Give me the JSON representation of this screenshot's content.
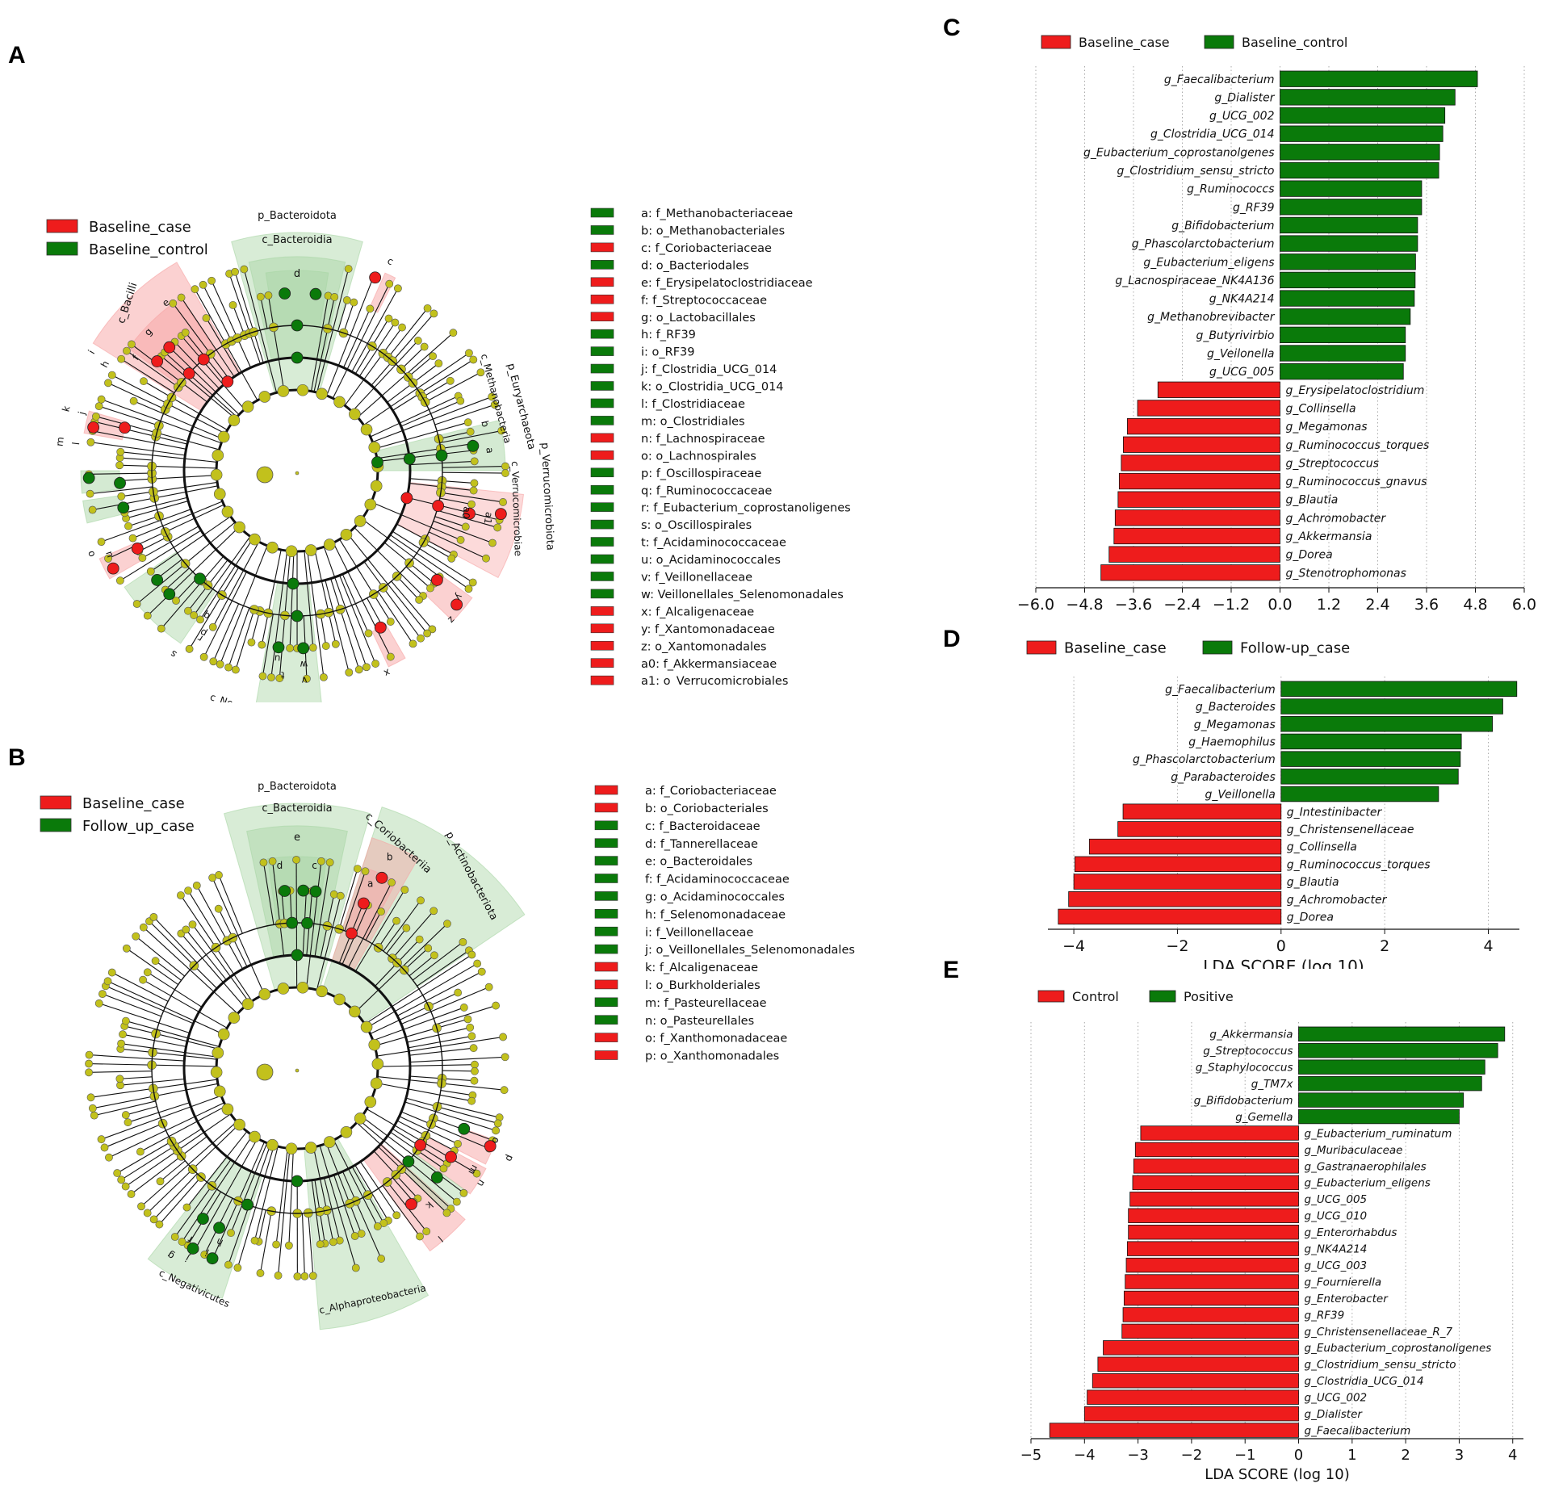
{
  "colors": {
    "red": "#ee1c1c",
    "green": "#0a7a0a",
    "node": "#c2c11c",
    "red_sector": "#f7a3a3",
    "green_sector": "#a9d5a5"
  },
  "panels": {
    "A": "A",
    "B": "B",
    "C": "C",
    "D": "D",
    "E": "E"
  },
  "clade_A": {
    "legend": [
      "Baseline_case",
      "Baseline_control"
    ],
    "labels": [
      "p_Bacteroidota",
      "c_Bacteroidia",
      "d",
      "c_Bacilli",
      "p_Euryarchaeota",
      "c_Methanobacteria",
      "p_Verrucomicrobiota",
      "c_Verrucomicrobiae",
      "c_Negativicutes",
      "c",
      "e",
      "g",
      "f",
      "i",
      "h",
      "k",
      "j",
      "m",
      "l",
      "o",
      "n",
      "b",
      "a",
      "a1",
      "a0",
      "q",
      "p",
      "s",
      "r",
      "t",
      "u",
      "w",
      "v",
      "y",
      "z",
      "x"
    ],
    "keys": [
      {
        "text": "a: f_Methanobacteriaceae",
        "c": "g"
      },
      {
        "text": "b: o_Methanobacteriales",
        "c": "g"
      },
      {
        "text": "c: f_Coriobacteriaceae",
        "c": "r"
      },
      {
        "text": "d: o_Bacteriodales",
        "c": "g"
      },
      {
        "text": "e: f_Erysipelatoclostridiaceae",
        "c": "r"
      },
      {
        "text": "f: f_Streptococcaceae",
        "c": "r"
      },
      {
        "text": "g: o_Lactobacillales",
        "c": "r"
      },
      {
        "text": "h: f_RF39",
        "c": "g"
      },
      {
        "text": "i: o_RF39",
        "c": "g"
      },
      {
        "text": "j: f_Clostridia_UCG_014",
        "c": "g"
      },
      {
        "text": "k: o_Clostridia_UCG_014",
        "c": "g"
      },
      {
        "text": "l: f_Clostridiaceae",
        "c": "g"
      },
      {
        "text": "m: o_Clostridiales",
        "c": "g"
      },
      {
        "text": "n: f_Lachnospiraceae",
        "c": "r"
      },
      {
        "text": "o: o_Lachnospirales",
        "c": "r"
      },
      {
        "text": "p: f_Oscillospiraceae",
        "c": "g"
      },
      {
        "text": "q: f_Ruminococcaceae",
        "c": "g"
      },
      {
        "text": "r: f_Eubacterium_coprostanoligenes",
        "c": "g"
      },
      {
        "text": "s: o_Oscillospirales",
        "c": "g"
      },
      {
        "text": "t: f_Acidaminococcaceae",
        "c": "g"
      },
      {
        "text": "u: o_Acidaminococcales",
        "c": "g"
      },
      {
        "text": "v: f_Veillonellaceae",
        "c": "g"
      },
      {
        "text": "w: Veillonellales_Selenomonadales",
        "c": "g"
      },
      {
        "text": "x: f_Alcaligenaceae",
        "c": "r"
      },
      {
        "text": "y: f_Xantomonadaceae",
        "c": "r"
      },
      {
        "text": "z: o_Xantomonadales",
        "c": "r"
      },
      {
        "text": "a0: f_Akkermansiaceae",
        "c": "r"
      },
      {
        "text": "a1: o_Verrucomicrobiales",
        "c": "r"
      }
    ]
  },
  "clade_B": {
    "legend": [
      "Baseline_case",
      "Follow_up_case"
    ],
    "labels": [
      "p_Bacteroidota",
      "c_Bacteroidia",
      "c_Coriobacteriia",
      "p_Actinobacteriota",
      "c_Negativicutes",
      "c_Alphaproteobacteria",
      "e",
      "d",
      "c",
      "b",
      "a",
      "p",
      "o",
      "n",
      "m",
      "k",
      "l",
      "i",
      "h",
      "j",
      "g",
      "f"
    ],
    "keys": [
      {
        "text": "a: f_Coriobacteriaceae",
        "c": "r"
      },
      {
        "text": "b: o_Coriobacteriales",
        "c": "r"
      },
      {
        "text": "c: f_Bacteroidaceae",
        "c": "g"
      },
      {
        "text": "d: f_Tannerellaceae",
        "c": "g"
      },
      {
        "text": "e: o_Bacteroidales",
        "c": "g"
      },
      {
        "text": "f: f_Acidaminococcaceae",
        "c": "g"
      },
      {
        "text": "g: o_Acidaminococcales",
        "c": "g"
      },
      {
        "text": "h: f_Selenomonadaceae",
        "c": "g"
      },
      {
        "text": "i: f_Veillonellaceae",
        "c": "g"
      },
      {
        "text": "j: o_Veillonellales_Selenomonadales",
        "c": "g"
      },
      {
        "text": "k: f_Alcaligenaceae",
        "c": "r"
      },
      {
        "text": "l: o_Burkholderiales",
        "c": "r"
      },
      {
        "text": "m: f_Pasteurellaceae",
        "c": "g"
      },
      {
        "text": "n: o_Pasteurellales",
        "c": "g"
      },
      {
        "text": "o: f_Xanthomonadaceae",
        "c": "r"
      },
      {
        "text": "p: o_Xanthomonadales",
        "c": "r"
      }
    ]
  },
  "chart_data": [
    {
      "panel": "C",
      "type": "bar",
      "orientation": "horizontal",
      "legend": [
        "Baseline_case",
        "Baseline_control"
      ],
      "xlabel": "LDA SCORE (log 10)",
      "xlim": [
        -6.0,
        6.0
      ],
      "ticks": [
        "-6.0",
        "-4.8",
        "-3.6",
        "-2.4",
        "-1.2",
        "0.0",
        "1.2",
        "2.4",
        "3.6",
        "4.8",
        "6.0"
      ],
      "series": [
        {
          "name": "Baseline_control",
          "color": "green",
          "categories": [
            "g_Faecalibacterium",
            "g_Dialister",
            "g_UCG_002",
            "g_Clostridia_UCG_014",
            "g_Eubacterium_coprostanolgenes",
            "g_Clostridium_sensu_stricto",
            "g_Ruminococcs",
            "g_RF39",
            "g_Bifidobacterium",
            "g_Phascolarctobacterium",
            "g_Eubacterium_eligens",
            "g_Lacnospiraceae_NK4A136",
            "g_NK4A214",
            "g_Methanobrevibacter",
            "g_Butyrivirbio",
            "g_Veilonella",
            "g_UCG_005"
          ],
          "values": [
            4.85,
            4.3,
            4.05,
            4.0,
            3.92,
            3.9,
            3.48,
            3.48,
            3.38,
            3.38,
            3.33,
            3.32,
            3.3,
            3.2,
            3.08,
            3.08,
            3.03
          ]
        },
        {
          "name": "Baseline_case",
          "color": "red",
          "categories": [
            "g_Erysipelatoclostridium",
            "g_Collinsella",
            "g_Megamonas",
            "g_Ruminococcus_torques",
            "g_Streptococcus",
            "g_Ruminococcus_gnavus",
            "g_Blautia",
            "g_Achromobacter",
            "g_Akkermansia",
            "g_Dorea",
            "g_Stenotrophomonas"
          ],
          "values": [
            -3.0,
            -3.5,
            -3.75,
            -3.85,
            -3.9,
            -3.95,
            -3.98,
            -4.05,
            -4.08,
            -4.2,
            -4.4
          ]
        }
      ]
    },
    {
      "panel": "D",
      "type": "bar",
      "orientation": "horizontal",
      "legend": [
        "Baseline_case",
        "Follow-up_case"
      ],
      "xlabel": "LDA SCORE (log 10)",
      "xlim": [
        -4.5,
        4.6
      ],
      "ticks": [
        "-4",
        "-2",
        "0",
        "2",
        "4"
      ],
      "series": [
        {
          "name": "Follow-up_case",
          "color": "green",
          "categories": [
            "g_Faecalibacterium",
            "g_Bacteroides",
            "g_Megamonas",
            "g_Haemophilus",
            "g_Phascolarctobacterium",
            "g_Parabacteroides",
            "g_Veillonella"
          ],
          "values": [
            4.55,
            4.28,
            4.08,
            3.48,
            3.46,
            3.42,
            3.04
          ]
        },
        {
          "name": "Baseline_case",
          "color": "red",
          "categories": [
            "g_Intestinibacter",
            "g_Christensenellaceae",
            "g_Collinsella",
            "g_Ruminococcus_torques",
            "g_Blautia",
            "g_Achromobacter",
            "g_Dorea"
          ],
          "values": [
            -3.05,
            -3.15,
            -3.7,
            -3.98,
            -4.0,
            -4.1,
            -4.3
          ]
        }
      ]
    },
    {
      "panel": "E",
      "type": "bar",
      "orientation": "horizontal",
      "legend": [
        "Control",
        "Positive"
      ],
      "xlabel": "LDA SCORE (log 10)",
      "xlim": [
        -5.0,
        4.2
      ],
      "ticks": [
        "-5",
        "-4",
        "-3",
        "-2",
        "-1",
        "0",
        "1",
        "2",
        "3",
        "4"
      ],
      "series": [
        {
          "name": "Positive",
          "color": "green",
          "categories": [
            "g_Akkermansia",
            "g_Streptococcus",
            "g_Staphylococcus",
            "g_TM7x",
            "g_Bifidobacterium",
            "g_Gemella"
          ],
          "values": [
            3.85,
            3.72,
            3.48,
            3.42,
            3.08,
            3.0
          ]
        },
        {
          "name": "Control",
          "color": "red",
          "categories": [
            "g_Eubacterium_ruminatum",
            "g_Muribaculaceae",
            "g_Gastranaerophilales",
            "g_Eubacterium_eligens",
            "g_UCG_005",
            "g_UCG_010",
            "g_Enterorhabdus",
            "g_NK4A214",
            "g_UCG_003",
            "g_Fournierella",
            "g_Enterobacter",
            "g_RF39",
            "g_Christensenellaceae_R_7",
            "g_Eubacterium_coprostanoligenes",
            "g_Clostridium_sensu_stricto",
            "g_Clostridia_UCG_014",
            "g_UCG_002",
            "g_Dialister",
            "g_Faecalibacterium"
          ],
          "values": [
            -2.95,
            -3.05,
            -3.08,
            -3.1,
            -3.15,
            -3.18,
            -3.18,
            -3.2,
            -3.22,
            -3.24,
            -3.26,
            -3.28,
            -3.3,
            -3.65,
            -3.75,
            -3.85,
            -3.95,
            -4.0,
            -4.65
          ]
        }
      ]
    }
  ]
}
